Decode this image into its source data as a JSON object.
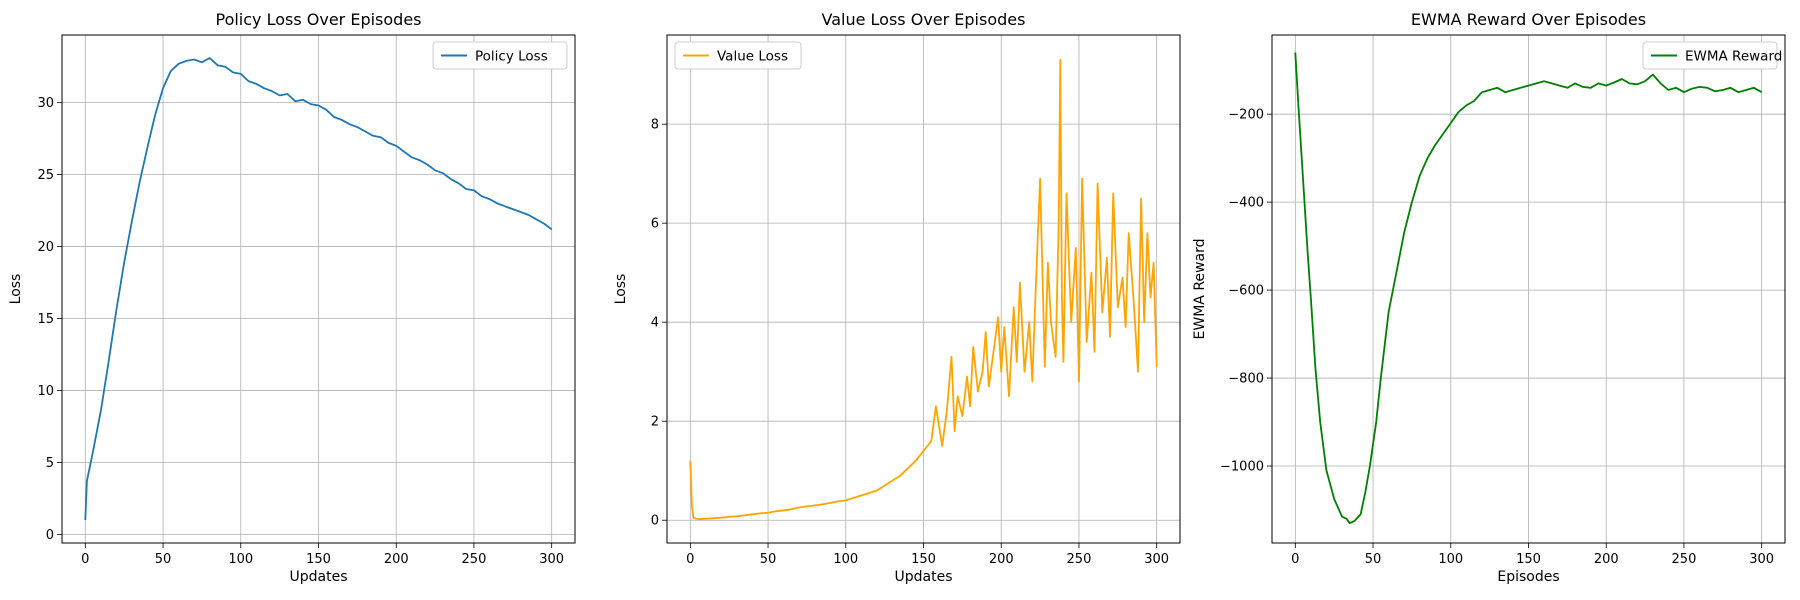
{
  "chart_data": [
    {
      "type": "line",
      "title": "Policy Loss Over Episodes",
      "xlabel": "Updates",
      "ylabel": "Loss",
      "xlim": [
        -15,
        315
      ],
      "ylim": [
        -0.6,
        34.7
      ],
      "xticks": [
        0,
        50,
        100,
        150,
        200,
        250,
        300
      ],
      "yticks": [
        0,
        5,
        10,
        15,
        20,
        25,
        30
      ],
      "grid": true,
      "legend_position": "top-right",
      "series": [
        {
          "name": "Policy Loss",
          "color": "#1f77b4",
          "x": [
            0,
            1,
            5,
            10,
            15,
            20,
            25,
            30,
            35,
            40,
            45,
            50,
            55,
            60,
            65,
            70,
            75,
            80,
            85,
            90,
            95,
            100,
            105,
            110,
            115,
            120,
            125,
            130,
            135,
            140,
            145,
            150,
            155,
            160,
            165,
            170,
            175,
            180,
            185,
            190,
            195,
            200,
            205,
            210,
            215,
            220,
            225,
            230,
            235,
            240,
            245,
            250,
            255,
            260,
            265,
            270,
            275,
            280,
            285,
            290,
            295,
            300
          ],
          "y": [
            1.0,
            3.7,
            5.8,
            8.6,
            12.0,
            15.6,
            18.9,
            21.8,
            24.5,
            26.9,
            29.2,
            31.0,
            32.2,
            32.7,
            32.9,
            33.0,
            32.8,
            33.1,
            32.6,
            32.5,
            32.1,
            32.0,
            31.5,
            31.3,
            31.0,
            30.8,
            30.5,
            30.6,
            30.1,
            30.2,
            29.9,
            29.8,
            29.5,
            29.0,
            28.8,
            28.5,
            28.3,
            28.0,
            27.7,
            27.6,
            27.2,
            27.0,
            26.6,
            26.2,
            26.0,
            25.7,
            25.3,
            25.1,
            24.7,
            24.4,
            24.0,
            23.9,
            23.5,
            23.3,
            23.0,
            22.8,
            22.6,
            22.4,
            22.2,
            21.9,
            21.6,
            21.2
          ]
        }
      ]
    },
    {
      "type": "line",
      "title": "Value Loss Over Episodes",
      "xlabel": "Updates",
      "ylabel": "Loss",
      "xlim": [
        -15,
        315
      ],
      "ylim": [
        -0.46,
        9.8
      ],
      "xticks": [
        0,
        50,
        100,
        150,
        200,
        250,
        300
      ],
      "yticks": [
        0,
        2,
        4,
        6,
        8
      ],
      "grid": true,
      "legend_position": "top-left",
      "series": [
        {
          "name": "Value Loss",
          "color": "#ffa500",
          "x": [
            0,
            1,
            2,
            5,
            10,
            15,
            20,
            25,
            30,
            35,
            40,
            45,
            50,
            55,
            60,
            65,
            70,
            75,
            80,
            85,
            90,
            95,
            100,
            105,
            110,
            115,
            120,
            125,
            130,
            135,
            140,
            145,
            150,
            155,
            158,
            162,
            165,
            168,
            170,
            172,
            175,
            178,
            180,
            182,
            185,
            188,
            190,
            192,
            195,
            198,
            200,
            202,
            205,
            208,
            210,
            212,
            215,
            218,
            220,
            222,
            225,
            228,
            230,
            232,
            235,
            237,
            238,
            239,
            240,
            242,
            245,
            248,
            250,
            252,
            255,
            258,
            260,
            262,
            265,
            268,
            270,
            272,
            275,
            278,
            280,
            282,
            285,
            288,
            290,
            292,
            294,
            296,
            298,
            300
          ],
          "y": [
            1.2,
            0.3,
            0.05,
            0.02,
            0.03,
            0.04,
            0.05,
            0.07,
            0.08,
            0.1,
            0.12,
            0.14,
            0.15,
            0.18,
            0.2,
            0.22,
            0.26,
            0.28,
            0.3,
            0.32,
            0.35,
            0.38,
            0.4,
            0.45,
            0.5,
            0.55,
            0.6,
            0.7,
            0.8,
            0.9,
            1.05,
            1.2,
            1.4,
            1.6,
            2.3,
            1.5,
            2.2,
            3.3,
            1.8,
            2.5,
            2.1,
            2.9,
            2.3,
            3.5,
            2.6,
            3.0,
            3.8,
            2.7,
            3.4,
            4.1,
            3.0,
            3.9,
            2.5,
            4.3,
            3.2,
            4.8,
            3.0,
            4.0,
            2.8,
            4.5,
            6.9,
            3.1,
            5.2,
            4.0,
            3.3,
            6.0,
            9.3,
            4.5,
            3.2,
            6.6,
            4.0,
            5.5,
            2.8,
            6.9,
            3.6,
            5.0,
            3.4,
            6.8,
            4.2,
            5.3,
            3.7,
            6.6,
            4.3,
            4.9,
            3.9,
            5.8,
            4.5,
            3.0,
            6.5,
            4.0,
            5.8,
            4.5,
            5.2,
            3.1
          ]
        }
      ]
    },
    {
      "type": "line",
      "title": "EWMA Reward Over Episodes",
      "xlabel": "Episodes",
      "ylabel": "EWMA Reward",
      "xlim": [
        -15,
        315
      ],
      "ylim": [
        -1175,
        -20
      ],
      "xticks": [
        0,
        50,
        100,
        150,
        200,
        250,
        300
      ],
      "yticks": [
        -1000,
        -800,
        -600,
        -400,
        -200
      ],
      "grid": true,
      "legend_position": "top-right",
      "series": [
        {
          "name": "EWMA Reward",
          "color": "#008000",
          "x": [
            0,
            2,
            5,
            8,
            10,
            13,
            16,
            20,
            25,
            30,
            33,
            35,
            38,
            42,
            45,
            48,
            52,
            55,
            60,
            65,
            70,
            75,
            80,
            85,
            90,
            95,
            100,
            105,
            110,
            115,
            120,
            125,
            130,
            135,
            140,
            145,
            150,
            155,
            160,
            165,
            170,
            175,
            180,
            185,
            190,
            195,
            200,
            205,
            210,
            215,
            220,
            225,
            230,
            235,
            240,
            245,
            250,
            255,
            260,
            265,
            270,
            275,
            280,
            285,
            290,
            295,
            300
          ],
          "y": [
            -60,
            -180,
            -350,
            -520,
            -620,
            -780,
            -900,
            -1010,
            -1075,
            -1115,
            -1120,
            -1130,
            -1125,
            -1110,
            -1060,
            -1000,
            -900,
            -800,
            -650,
            -560,
            -470,
            -400,
            -340,
            -300,
            -270,
            -245,
            -220,
            -195,
            -180,
            -170,
            -150,
            -145,
            -140,
            -150,
            -145,
            -140,
            -135,
            -130,
            -125,
            -130,
            -135,
            -140,
            -130,
            -138,
            -140,
            -130,
            -135,
            -128,
            -120,
            -130,
            -132,
            -125,
            -110,
            -130,
            -145,
            -140,
            -150,
            -142,
            -138,
            -140,
            -148,
            -145,
            -140,
            -150,
            -145,
            -140,
            -150
          ]
        }
      ]
    }
  ]
}
